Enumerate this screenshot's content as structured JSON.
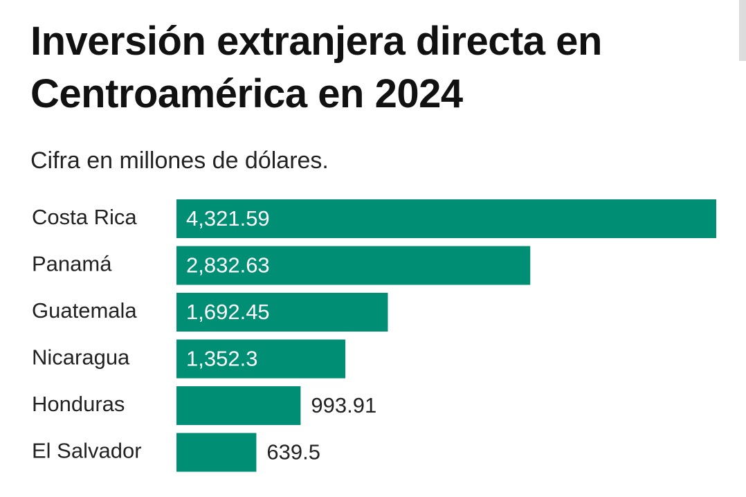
{
  "chart_data": {
    "type": "bar",
    "orientation": "horizontal",
    "title": "Inversión extranjera directa en Centroamérica en 2024",
    "subtitle": "Cifra en millones de dólares.",
    "categories": [
      "Costa Rica",
      "Panamá",
      "Guatemala",
      "Nicaragua",
      "Honduras",
      "El Salvador"
    ],
    "values": [
      4321.59,
      2832.63,
      1692.45,
      1352.3,
      993.91,
      639.5
    ],
    "value_labels": [
      "4,321.59",
      "2,832.63",
      "1,692.45",
      "1,352.3",
      "993.91",
      "639.5"
    ],
    "xlim": [
      0,
      4321.59
    ],
    "grid": false,
    "legend": "none",
    "colors": {
      "bar": "#008f75",
      "label_inside": "#ffffff",
      "label_outside": "#222222"
    }
  }
}
